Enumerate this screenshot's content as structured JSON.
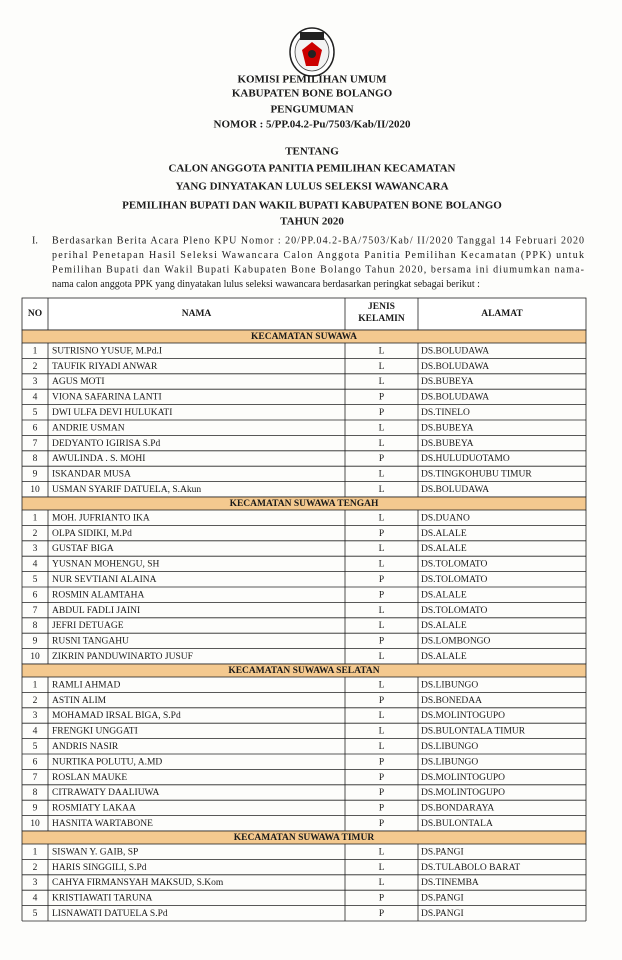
{
  "header": {
    "lines": [
      "KOMISI PEMILIHAN UMUM",
      "KABUPATEN BONE BOLANGO",
      "PENGUMUMAN",
      "NOMOR : 5/PP.04.2-Pu/7503/Kab/II/2020"
    ]
  },
  "subject": {
    "lines": [
      "TENTANG",
      "CALON ANGGOTA PANITIA PEMILIHAN KECAMATAN",
      "YANG DINYATAKAN LULUS SELEKSI WAWANCARA",
      "PEMILIHAN BUPATI DAN WAKIL BUPATI KABUPATEN BONE BOLANGO",
      "TAHUN 2020"
    ]
  },
  "paragraph": {
    "number": "I.",
    "lines": [
      "Berdasarkan Berita Acara Pleno KPU Nomor : 20/PP.04.2-BA/7503/Kab/ II/2020 Tanggal 14 Februari 2020",
      "perihal Penetapan Hasil Seleksi Wawancara Calon Anggota Panitia Pemilihan Kecamatan (PPK) untuk",
      "Pemilihan Bupati dan Wakil Bupati Kabupaten Bone Bolango Tahun 2020, bersama ini diumumkan nama-",
      "nama calon anggota PPK yang dinyatakan lulus seleksi wawancara berdasarkan peringkat sebagai berikut :"
    ]
  },
  "table": {
    "columns": {
      "no": "NO",
      "name": "NAMA",
      "gender": [
        "JENIS",
        "KELAMIN"
      ],
      "address": "ALAMAT"
    },
    "sections": [
      {
        "title": "KECAMATAN SUWAWA",
        "rows": [
          [
            1,
            "SUTRISNO YUSUF, M.Pd.I",
            "L",
            "DS.BOLUDAWA"
          ],
          [
            2,
            "TAUFIK RIYADI ANWAR",
            "L",
            "DS.BOLUDAWA"
          ],
          [
            3,
            "AGUS MOTI",
            "L",
            "DS.BUBEYA"
          ],
          [
            4,
            "VIONA SAFARINA LANTI",
            "P",
            "DS.BOLUDAWA"
          ],
          [
            5,
            "DWI ULFA DEVI HULUKATI",
            "P",
            "DS.TINELO"
          ],
          [
            6,
            "ANDRIE USMAN",
            "L",
            "DS.BUBEYA"
          ],
          [
            7,
            "DEDYANTO IGIRISA S.Pd",
            "L",
            "DS.BUBEYA"
          ],
          [
            8,
            "AWULINDA . S. MOHI",
            "P",
            "DS.HULUDUOTAMO"
          ],
          [
            9,
            "ISKANDAR MUSA",
            "L",
            "DS.TINGKOHUBU TIMUR"
          ],
          [
            10,
            "USMAN SYARIF DATUELA, S.Akun",
            "L",
            "DS.BOLUDAWA"
          ]
        ]
      },
      {
        "title": "KECAMATAN SUWAWA TENGAH",
        "rows": [
          [
            1,
            "MOH. JUFRIANTO IKA",
            "L",
            "DS.DUANO"
          ],
          [
            2,
            "OLPA SIDIKI, M.Pd",
            "P",
            "DS.ALALE"
          ],
          [
            3,
            "GUSTAF BIGA",
            "L",
            "DS.ALALE"
          ],
          [
            4,
            "YUSNAN MOHENGU, SH",
            "L",
            "DS.TOLOMATO"
          ],
          [
            5,
            "NUR SEVTIANI ALAINA",
            "P",
            "DS.TOLOMATO"
          ],
          [
            6,
            "ROSMIN ALAMTAHA",
            "P",
            "DS.ALALE"
          ],
          [
            7,
            "ABDUL FADLI JAINI",
            "L",
            "DS.TOLOMATO"
          ],
          [
            8,
            "JEFRI DETUAGE",
            "L",
            "DS.ALALE"
          ],
          [
            9,
            "RUSNI TANGAHU",
            "P",
            "DS.LOMBONGO"
          ],
          [
            10,
            "ZIKRIN PANDUWINARTO JUSUF",
            "L",
            "DS.ALALE"
          ]
        ]
      },
      {
        "title": "KECAMATAN SUWAWA SELATAN",
        "rows": [
          [
            1,
            "RAMLI AHMAD",
            "L",
            "DS.LIBUNGO"
          ],
          [
            2,
            "ASTIN ALIM",
            "P",
            "DS.BONEDAA"
          ],
          [
            3,
            "MOHAMAD IRSAL BIGA, S.Pd",
            "L",
            "DS.MOLINTOGUPO"
          ],
          [
            4,
            "FRENGKI UNGGATI",
            "L",
            "DS.BULONTALA TIMUR"
          ],
          [
            5,
            "ANDRIS NASIR",
            "L",
            "DS.LIBUNGO"
          ],
          [
            6,
            "NURTIKA POLUTU, A.MD",
            "P",
            "DS.LIBUNGO"
          ],
          [
            7,
            "ROSLAN MAUKE",
            "P",
            "DS.MOLINTOGUPO"
          ],
          [
            8,
            "CITRAWATY DAALIUWA",
            "P",
            "DS.MOLINTOGUPO"
          ],
          [
            9,
            "ROSMIATY LAKAA",
            "P",
            "DS.BONDARAYA"
          ],
          [
            10,
            "HASNITA WARTABONE",
            "P",
            "DS.BULONTALA"
          ]
        ]
      },
      {
        "title": "KECAMATAN SUWAWA TIMUR",
        "rows": [
          [
            1,
            "SISWAN Y. GAIB, SP",
            "L",
            "DS.PANGI"
          ],
          [
            2,
            "HARIS SINGGILI, S.Pd",
            "L",
            "DS.TULABOLO BARAT"
          ],
          [
            3,
            "CAHYA FIRMANSYAH MAKSUD, S.Kom",
            "L",
            "DS.TINEMBA"
          ],
          [
            4,
            "KRISTIAWATI TARUNA",
            "P",
            "DS.PANGI"
          ],
          [
            5,
            "LISNAWATI DATUELA S.Pd",
            "P",
            "DS.PANGI"
          ]
        ]
      }
    ]
  }
}
